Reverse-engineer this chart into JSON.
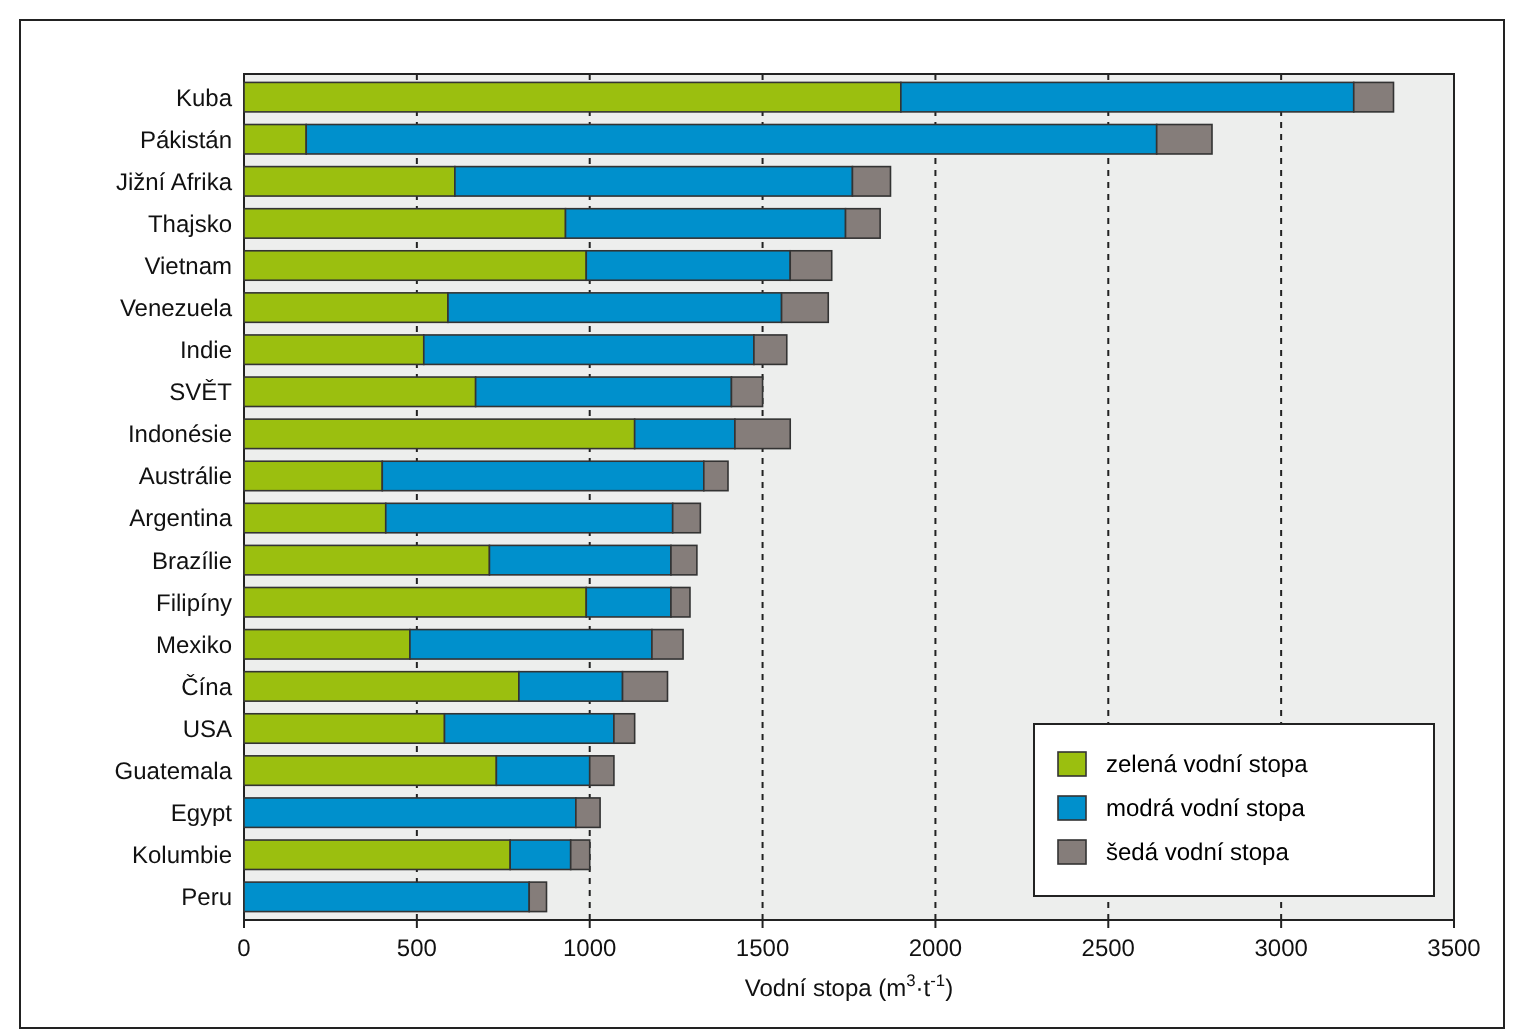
{
  "chart_data": {
    "type": "bar",
    "orientation": "horizontal",
    "stacked": true,
    "categories": [
      "Kuba",
      "Pákistán",
      "Jižní Afrika",
      "Thajsko",
      "Vietnam",
      "Venezuela",
      "Indie",
      "SVĚT",
      "Indonésie",
      "Austrálie",
      "Argentina",
      "Brazílie",
      "Filipíny",
      "Mexiko",
      "Čína",
      "USA",
      "Guatemala",
      "Egypt",
      "Kolumbie",
      "Peru"
    ],
    "series": [
      {
        "name": "zelená vodní stopa",
        "color": "#9bbf0f",
        "values": [
          1900,
          180,
          610,
          930,
          990,
          590,
          520,
          670,
          1130,
          400,
          410,
          710,
          990,
          480,
          795,
          580,
          730,
          0,
          770,
          0
        ]
      },
      {
        "name": "modrá vodní stopa",
        "color": "#0090cc",
        "values": [
          1310,
          2460,
          1150,
          810,
          590,
          965,
          955,
          740,
          290,
          930,
          830,
          525,
          245,
          700,
          300,
          490,
          270,
          960,
          175,
          825
        ]
      },
      {
        "name": "šedá vodní stopa",
        "color": "#857d7a",
        "values": [
          115,
          160,
          110,
          100,
          120,
          135,
          95,
          90,
          160,
          70,
          80,
          75,
          55,
          90,
          130,
          60,
          70,
          70,
          55,
          50
        ]
      }
    ],
    "xlabel": "Vodní stopa (m$^{3}$·t$^{-1}$)",
    "xlim": [
      0,
      3500
    ],
    "xticks": [
      0,
      500,
      1000,
      1500,
      2000,
      2500,
      3000,
      3500
    ],
    "grid": "x",
    "legend": "bottom right"
  }
}
